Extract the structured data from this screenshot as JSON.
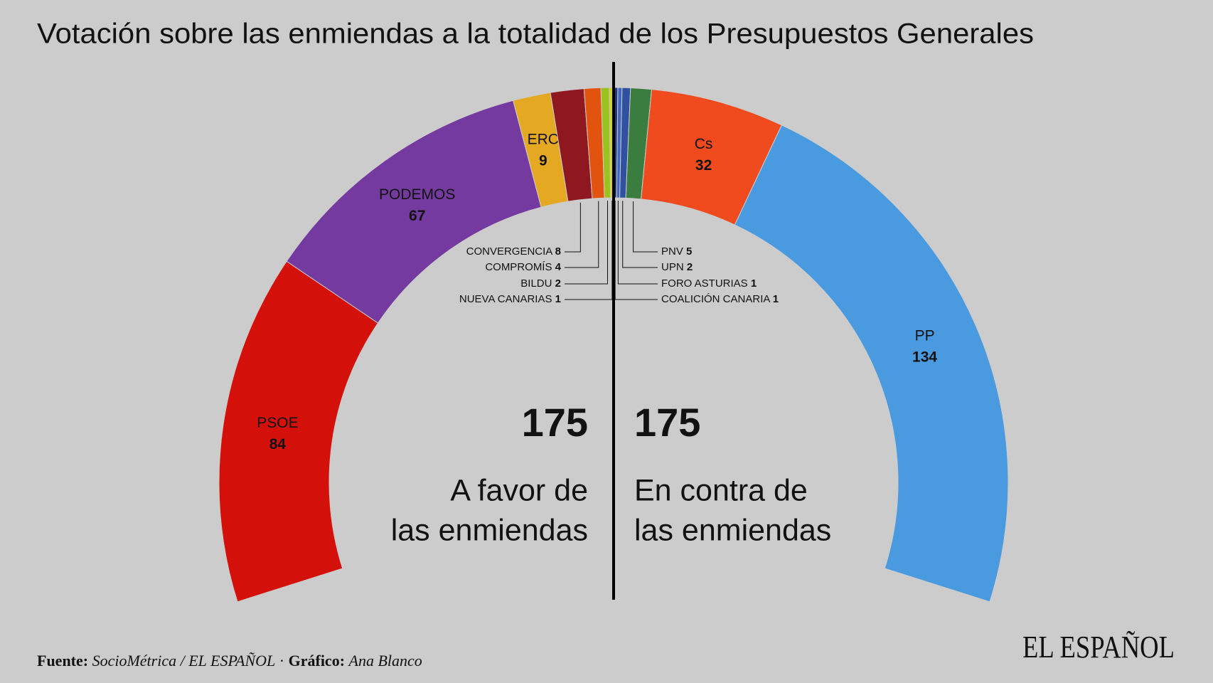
{
  "chart_data": {
    "type": "parliament",
    "title": "Votación sobre las enmiendas a la totalidad de los Presupuestos Generales",
    "categories": [
      "PSOE",
      "PODEMOS",
      "ERC",
      "CONVERGENCIA",
      "COMPROMÍS",
      "BILDU",
      "NUEVA CANARIAS",
      "COALICIÓN CANARIA",
      "FORO ASTURIAS",
      "UPN",
      "PNV",
      "Cs",
      "PP"
    ],
    "values": [
      84,
      67,
      9,
      8,
      4,
      2,
      1,
      1,
      1,
      2,
      5,
      32,
      134
    ],
    "colors": [
      "#d3110a",
      "#743aa0",
      "#e5a823",
      "#8f1720",
      "#e2530f",
      "#9bc21e",
      "#d2d41a",
      "#1f3a7a",
      "#3f64c4",
      "#3050a0",
      "#3b7d3e",
      "#ef4b1f",
      "#4a9ae0"
    ],
    "blocs": [
      {
        "value": 175,
        "label": [
          "A favor de",
          "las enmiendas"
        ]
      },
      {
        "value": 175,
        "label": [
          "En contra de",
          "las enmiendas"
        ]
      }
    ]
  },
  "footer": {
    "source_label": "Fuente:",
    "source": "SocioMétrica / EL ESPAÑOL",
    "separator": "·",
    "graphic_label": "Gráfico:",
    "graphic": "Ana Blanco"
  },
  "logo": "EL ESPAÑOL"
}
